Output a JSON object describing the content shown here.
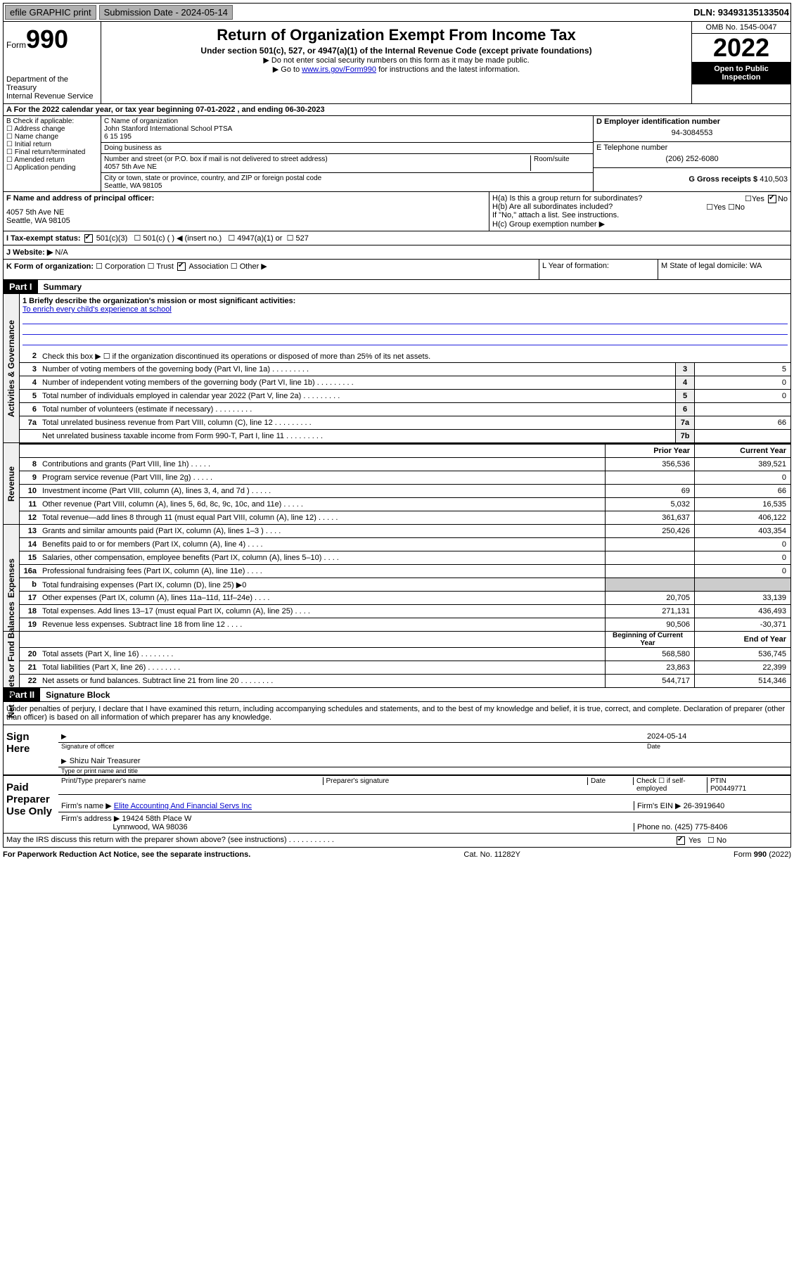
{
  "topbar": {
    "efile": "efile GRAPHIC print",
    "submission": "Submission Date - 2024-05-14",
    "dln": "DLN: 93493135133504"
  },
  "header": {
    "form_word": "Form",
    "form_num": "990",
    "dept": "Department of the Treasury",
    "irs": "Internal Revenue Service",
    "title": "Return of Organization Exempt From Income Tax",
    "subtitle": "Under section 501(c), 527, or 4947(a)(1) of the Internal Revenue Code (except private foundations)",
    "note1": "▶ Do not enter social security numbers on this form as it may be made public.",
    "note2_pre": "▶ Go to ",
    "note2_link": "www.irs.gov/Form990",
    "note2_post": " for instructions and the latest information.",
    "omb": "OMB No. 1545-0047",
    "year": "2022",
    "inspect1": "Open to Public",
    "inspect2": "Inspection"
  },
  "rowA": "A For the 2022 calendar year, or tax year beginning 07-01-2022  , and ending 06-30-2023",
  "colB": {
    "label": "B Check if applicable:",
    "opts": [
      "Address change",
      "Name change",
      "Initial return",
      "Final return/terminated",
      "Amended return",
      "Application pending"
    ]
  },
  "colC": {
    "name_label": "C Name of organization",
    "name1": "John Stanford International School PTSA",
    "name2": "6 15 195",
    "dba": "Doing business as",
    "addr_label": "Number and street (or P.O. box if mail is not delivered to street address)",
    "room": "Room/suite",
    "addr": "4057 5th Ave NE",
    "city_label": "City or town, state or province, country, and ZIP or foreign postal code",
    "city": "Seattle, WA  98105"
  },
  "colDE": {
    "d_label": "D Employer identification number",
    "d_val": "94-3084553",
    "e_label": "E Telephone number",
    "e_val": "(206) 252-6080",
    "g_label": "G Gross receipts $",
    "g_val": "410,503"
  },
  "rowF": {
    "f_label": "F  Name and address of principal officer:",
    "addr1": "4057 5th Ave NE",
    "addr2": "Seattle, WA  98105",
    "ha": "H(a)  Is this a group return for subordinates?",
    "hb": "H(b)  Are all subordinates included?",
    "hnote": "If \"No,\" attach a list. See instructions.",
    "hc": "H(c)  Group exemption number ▶",
    "yes": "Yes",
    "no": "No"
  },
  "rowI": {
    "label": "I   Tax-exempt status:",
    "opts": [
      "501(c)(3)",
      "501(c) (   ) ◀ (insert no.)",
      "4947(a)(1) or",
      "527"
    ]
  },
  "rowJ": {
    "label": "J   Website: ▶",
    "val": "N/A"
  },
  "rowK": {
    "label": "K Form of organization:",
    "opts": [
      "Corporation",
      "Trust",
      "Association",
      "Other ▶"
    ],
    "l": "L Year of formation:",
    "m": "M State of legal domicile: WA"
  },
  "part1": {
    "hdr": "Part I",
    "title": "Summary"
  },
  "summary": {
    "gov": "Activities & Governance",
    "rev": "Revenue",
    "exp": "Expenses",
    "net": "Net Assets or Fund Balances",
    "l1a": "1  Briefly describe the organization's mission or most significant activities:",
    "l1b": "To enrich every child's experience at school",
    "l2": "Check this box ▶ ☐  if the organization discontinued its operations or disposed of more than 25% of its net assets.",
    "lines_top": [
      {
        "n": "3",
        "d": "Number of voting members of the governing body (Part VI, line 1a)",
        "box": "3",
        "v": "5"
      },
      {
        "n": "4",
        "d": "Number of independent voting members of the governing body (Part VI, line 1b)",
        "box": "4",
        "v": "0"
      },
      {
        "n": "5",
        "d": "Total number of individuals employed in calendar year 2022 (Part V, line 2a)",
        "box": "5",
        "v": "0"
      },
      {
        "n": "6",
        "d": "Total number of volunteers (estimate if necessary)",
        "box": "6",
        "v": ""
      },
      {
        "n": "7a",
        "d": "Total unrelated business revenue from Part VIII, column (C), line 12",
        "box": "7a",
        "v": "66"
      },
      {
        "n": "",
        "d": "Net unrelated business taxable income from Form 990-T, Part I, line 11",
        "box": "7b",
        "v": ""
      }
    ],
    "prior": "Prior Year",
    "current": "Current Year",
    "lines_rev": [
      {
        "n": "8",
        "d": "Contributions and grants (Part VIII, line 1h)",
        "p": "356,536",
        "c": "389,521"
      },
      {
        "n": "9",
        "d": "Program service revenue (Part VIII, line 2g)",
        "p": "",
        "c": "0"
      },
      {
        "n": "10",
        "d": "Investment income (Part VIII, column (A), lines 3, 4, and 7d )",
        "p": "69",
        "c": "66"
      },
      {
        "n": "11",
        "d": "Other revenue (Part VIII, column (A), lines 5, 6d, 8c, 9c, 10c, and 11e)",
        "p": "5,032",
        "c": "16,535"
      },
      {
        "n": "12",
        "d": "Total revenue—add lines 8 through 11 (must equal Part VIII, column (A), line 12)",
        "p": "361,637",
        "c": "406,122"
      }
    ],
    "lines_exp": [
      {
        "n": "13",
        "d": "Grants and similar amounts paid (Part IX, column (A), lines 1–3 )",
        "p": "250,426",
        "c": "403,354"
      },
      {
        "n": "14",
        "d": "Benefits paid to or for members (Part IX, column (A), line 4)",
        "p": "",
        "c": "0"
      },
      {
        "n": "15",
        "d": "Salaries, other compensation, employee benefits (Part IX, column (A), lines 5–10)",
        "p": "",
        "c": "0"
      },
      {
        "n": "16a",
        "d": "Professional fundraising fees (Part IX, column (A), line 11e)",
        "p": "",
        "c": "0"
      },
      {
        "n": "b",
        "d": "Total fundraising expenses (Part IX, column (D), line 25) ▶0",
        "p": "SHADE",
        "c": "SHADE"
      },
      {
        "n": "17",
        "d": "Other expenses (Part IX, column (A), lines 11a–11d, 11f–24e)",
        "p": "20,705",
        "c": "33,139"
      },
      {
        "n": "18",
        "d": "Total expenses. Add lines 13–17 (must equal Part IX, column (A), line 25)",
        "p": "271,131",
        "c": "436,493"
      },
      {
        "n": "19",
        "d": "Revenue less expenses. Subtract line 18 from line 12",
        "p": "90,506",
        "c": "-30,371"
      }
    ],
    "begin": "Beginning of Current Year",
    "end": "End of Year",
    "lines_net": [
      {
        "n": "20",
        "d": "Total assets (Part X, line 16)",
        "p": "568,580",
        "c": "536,745"
      },
      {
        "n": "21",
        "d": "Total liabilities (Part X, line 26)",
        "p": "23,863",
        "c": "22,399"
      },
      {
        "n": "22",
        "d": "Net assets or fund balances. Subtract line 21 from line 20",
        "p": "544,717",
        "c": "514,346"
      }
    ]
  },
  "part2": {
    "hdr": "Part II",
    "title": "Signature Block"
  },
  "sig": {
    "penalty": "Under penalties of perjury, I declare that I have examined this return, including accompanying schedules and statements, and to the best of my knowledge and belief, it is true, correct, and complete. Declaration of preparer (other than officer) is based on all information of which preparer has any knowledge.",
    "sign_here": "Sign Here",
    "date": "2024-05-14",
    "sig_officer": "Signature of officer",
    "date_lbl": "Date",
    "name_title": "Shizu Nair Treasurer",
    "type_name": "Type or print name and title",
    "paid": "Paid Preparer Use Only",
    "prep_name": "Print/Type preparer's name",
    "prep_sig": "Preparer's signature",
    "prep_date": "Date",
    "check_self": "Check ☐ if self-employed",
    "ptin_lbl": "PTIN",
    "ptin": "P00449771",
    "firm_name_lbl": "Firm's name    ▶",
    "firm_name": "Elite Accounting And Financial Servs Inc",
    "firm_ein_lbl": "Firm's EIN ▶",
    "firm_ein": "26-3919640",
    "firm_addr_lbl": "Firm's address ▶",
    "firm_addr1": "19424 58th Place W",
    "firm_addr2": "Lynnwood, WA  98036",
    "phone_lbl": "Phone no.",
    "phone": "(425) 775-8406",
    "may_irs": "May the IRS discuss this return with the preparer shown above? (see instructions)",
    "yes": "Yes",
    "no": "No"
  },
  "footer": {
    "left": "For Paperwork Reduction Act Notice, see the separate instructions.",
    "mid": "Cat. No. 11282Y",
    "right": "Form 990 (2022)"
  }
}
